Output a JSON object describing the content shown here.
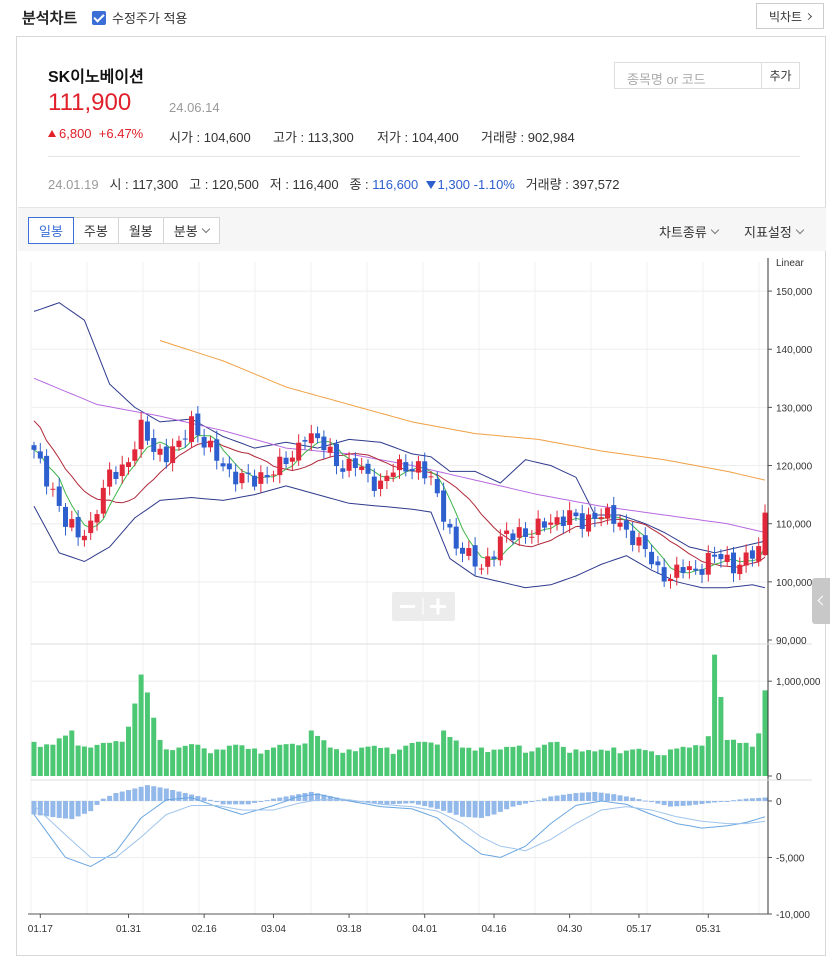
{
  "header": {
    "title": "분석차트",
    "adjusted_price_label": "수정주가 적용",
    "big_chart_label": "빅차트"
  },
  "stock": {
    "name": "SK이노베이션",
    "price": "111,900",
    "date": "24.06.14",
    "change_amount": "6,800",
    "change_pct": "+6.47%",
    "open": "시가 : 104,600",
    "high": "고가 : 113,300",
    "low": "저가 : 104,400",
    "volume": "거래량 : 902,984"
  },
  "search": {
    "placeholder": "종목명 or 코드",
    "add_label": "추가"
  },
  "compare": {
    "date": "24.01.19",
    "open": "시 : 117,300",
    "high": "고 : 120,500",
    "low": "저 : 116,400",
    "close_label": "종 : ",
    "close": "116,600",
    "change": "1,300",
    "change_pct": "-1.10%",
    "volume": "거래량 : 397,572"
  },
  "toolbar": {
    "tabs": [
      "일봉",
      "주봉",
      "월봉",
      "분봉"
    ],
    "active_tab": "일봉",
    "chart_type_label": "차트종류",
    "indicator_label": "지표설정"
  },
  "colors": {
    "up": "#e0283a",
    "down": "#2d5fce",
    "volume": "#4cc774",
    "macd_hist": "#93b8ea",
    "ma_short": "#3fb54a",
    "ma_mid": "#b0283a",
    "ma_long1": "#b86ae0",
    "ma_long2": "#f1a043",
    "bollinger": "#2e3a8c"
  },
  "chart_data": {
    "type": "candlestick",
    "scale_label": "Linear",
    "x_ticks": [
      "01.17",
      "01.31",
      "02.16",
      "03.04",
      "03.18",
      "04.01",
      "04.16",
      "04.30",
      "05.17",
      "05.31"
    ],
    "price_axis": {
      "ticks": [
        "150,000",
        "140,000",
        "130,000",
        "120,000",
        "110,000",
        "100,000",
        "90,000"
      ],
      "range": [
        90000,
        155000
      ]
    },
    "volume_axis": {
      "ticks": [
        "1,000,000",
        "0"
      ],
      "range": [
        0,
        1350000
      ]
    },
    "macd_axis": {
      "ticks": [
        "0",
        "-5,000",
        "-10,000"
      ],
      "range": [
        -10000,
        1500
      ]
    },
    "price_anchors": [
      [
        0,
        122
      ],
      [
        3,
        116
      ],
      [
        5,
        110
      ],
      [
        7,
        108
      ],
      [
        9,
        110
      ],
      [
        12,
        118
      ],
      [
        15,
        121
      ],
      [
        17,
        126
      ],
      [
        19,
        123
      ],
      [
        21,
        122
      ],
      [
        23,
        123
      ],
      [
        25,
        128
      ],
      [
        27,
        124
      ],
      [
        29,
        121
      ],
      [
        31,
        119
      ],
      [
        33,
        118
      ],
      [
        35,
        117
      ],
      [
        37,
        119
      ],
      [
        39,
        120
      ],
      [
        41,
        121
      ],
      [
        43,
        126
      ],
      [
        45,
        124
      ],
      [
        47,
        122
      ],
      [
        49,
        120
      ],
      [
        51,
        120
      ],
      [
        53,
        118
      ],
      [
        55,
        117
      ],
      [
        57,
        119
      ],
      [
        59,
        120
      ],
      [
        61,
        120
      ],
      [
        63,
        117
      ],
      [
        65,
        112
      ],
      [
        67,
        106
      ],
      [
        69,
        104
      ],
      [
        71,
        103
      ],
      [
        73,
        105
      ],
      [
        75,
        108
      ],
      [
        77,
        109
      ],
      [
        79,
        108
      ],
      [
        81,
        110
      ],
      [
        83,
        111
      ],
      [
        85,
        111
      ],
      [
        87,
        110
      ],
      [
        89,
        112
      ],
      [
        91,
        111
      ],
      [
        93,
        110
      ],
      [
        95,
        108
      ],
      [
        97,
        105
      ],
      [
        99,
        102
      ],
      [
        101,
        101
      ],
      [
        103,
        102
      ],
      [
        105,
        102
      ],
      [
        107,
        104
      ],
      [
        109,
        104
      ],
      [
        111,
        103
      ],
      [
        113,
        104
      ],
      [
        115,
        105
      ],
      [
        116,
        111.9
      ]
    ],
    "volume_anchors": [
      [
        0,
        360000
      ],
      [
        3,
        330000
      ],
      [
        6,
        480000
      ],
      [
        9,
        300000
      ],
      [
        12,
        350000
      ],
      [
        15,
        520000
      ],
      [
        17,
        1070000
      ],
      [
        20,
        380000
      ],
      [
        23,
        300000
      ],
      [
        26,
        330000
      ],
      [
        29,
        280000
      ],
      [
        32,
        330000
      ],
      [
        35,
        290000
      ],
      [
        38,
        300000
      ],
      [
        41,
        340000
      ],
      [
        44,
        480000
      ],
      [
        47,
        300000
      ],
      [
        50,
        280000
      ],
      [
        53,
        310000
      ],
      [
        56,
        300000
      ],
      [
        59,
        320000
      ],
      [
        62,
        360000
      ],
      [
        65,
        480000
      ],
      [
        68,
        300000
      ],
      [
        71,
        300000
      ],
      [
        74,
        280000
      ],
      [
        77,
        320000
      ],
      [
        80,
        300000
      ],
      [
        83,
        360000
      ],
      [
        86,
        280000
      ],
      [
        89,
        260000
      ],
      [
        92,
        300000
      ],
      [
        95,
        280000
      ],
      [
        98,
        260000
      ],
      [
        101,
        280000
      ],
      [
        104,
        300000
      ],
      [
        107,
        420000
      ],
      [
        108,
        1280000
      ],
      [
        110,
        380000
      ],
      [
        113,
        350000
      ],
      [
        115,
        450000
      ],
      [
        116,
        902984
      ]
    ],
    "macd_hist_anchors": [
      [
        0,
        -1200
      ],
      [
        4,
        -1500
      ],
      [
        6,
        -1600
      ],
      [
        9,
        -900
      ],
      [
        11,
        200
      ],
      [
        13,
        700
      ],
      [
        16,
        1100
      ],
      [
        18,
        1400
      ],
      [
        21,
        1100
      ],
      [
        24,
        700
      ],
      [
        27,
        300
      ],
      [
        30,
        -300
      ],
      [
        34,
        -300
      ],
      [
        38,
        200
      ],
      [
        41,
        500
      ],
      [
        44,
        800
      ],
      [
        48,
        300
      ],
      [
        52,
        -100
      ],
      [
        56,
        -300
      ],
      [
        60,
        -200
      ],
      [
        64,
        -700
      ],
      [
        68,
        -1400
      ],
      [
        71,
        -1500
      ],
      [
        73,
        -1200
      ],
      [
        76,
        -500
      ],
      [
        79,
        -100
      ],
      [
        82,
        400
      ],
      [
        86,
        700
      ],
      [
        89,
        800
      ],
      [
        92,
        600
      ],
      [
        95,
        300
      ],
      [
        98,
        -100
      ],
      [
        101,
        -500
      ],
      [
        104,
        -400
      ],
      [
        107,
        -200
      ],
      [
        110,
        0
      ],
      [
        113,
        200
      ],
      [
        116,
        300
      ]
    ],
    "macd_anchors": [
      [
        0,
        -1200
      ],
      [
        5,
        -5000
      ],
      [
        9,
        -5800
      ],
      [
        13,
        -4500
      ],
      [
        17,
        -1500
      ],
      [
        21,
        100
      ],
      [
        25,
        300
      ],
      [
        29,
        -500
      ],
      [
        33,
        -1200
      ],
      [
        38,
        -400
      ],
      [
        42,
        400
      ],
      [
        45,
        600
      ],
      [
        50,
        0
      ],
      [
        55,
        -500
      ],
      [
        60,
        -700
      ],
      [
        64,
        -1500
      ],
      [
        68,
        -3500
      ],
      [
        71,
        -4700
      ],
      [
        74,
        -5000
      ],
      [
        78,
        -4000
      ],
      [
        82,
        -2000
      ],
      [
        86,
        -400
      ],
      [
        90,
        0
      ],
      [
        94,
        -300
      ],
      [
        98,
        -1200
      ],
      [
        102,
        -2000
      ],
      [
        106,
        -2400
      ],
      [
        110,
        -2200
      ],
      [
        113,
        -1900
      ],
      [
        116,
        -1400
      ]
    ],
    "signal_anchors": [
      [
        0,
        -400
      ],
      [
        5,
        -3000
      ],
      [
        9,
        -5000
      ],
      [
        13,
        -5000
      ],
      [
        17,
        -3200
      ],
      [
        21,
        -1200
      ],
      [
        25,
        -400
      ],
      [
        29,
        -400
      ],
      [
        33,
        -800
      ],
      [
        38,
        -800
      ],
      [
        42,
        -200
      ],
      [
        45,
        100
      ],
      [
        50,
        100
      ],
      [
        55,
        -300
      ],
      [
        60,
        -500
      ],
      [
        64,
        -900
      ],
      [
        68,
        -2000
      ],
      [
        71,
        -3200
      ],
      [
        74,
        -4000
      ],
      [
        78,
        -4400
      ],
      [
        82,
        -3400
      ],
      [
        86,
        -2000
      ],
      [
        90,
        -800
      ],
      [
        94,
        -500
      ],
      [
        98,
        -800
      ],
      [
        102,
        -1400
      ],
      [
        106,
        -1800
      ],
      [
        110,
        -2000
      ],
      [
        113,
        -2000
      ],
      [
        116,
        -1800
      ]
    ],
    "ma_long2_anchors": [
      [
        20,
        141.5
      ],
      [
        30,
        138
      ],
      [
        40,
        133.5
      ],
      [
        50,
        130.5
      ],
      [
        60,
        127.5
      ],
      [
        70,
        125.5
      ],
      [
        80,
        124.5
      ],
      [
        90,
        122.5
      ],
      [
        100,
        121
      ],
      [
        110,
        119
      ],
      [
        116,
        117.5
      ]
    ],
    "ma_long1_anchors": [
      [
        0,
        135
      ],
      [
        10,
        130.5
      ],
      [
        20,
        128.5
      ],
      [
        30,
        126
      ],
      [
        40,
        123
      ],
      [
        50,
        122
      ],
      [
        60,
        120
      ],
      [
        70,
        117.5
      ],
      [
        80,
        115
      ],
      [
        90,
        113
      ],
      [
        100,
        111.5
      ],
      [
        110,
        110
      ],
      [
        116,
        108.5
      ]
    ],
    "bb_upper_anchors": [
      [
        0,
        146.5
      ],
      [
        4,
        148
      ],
      [
        8,
        145
      ],
      [
        12,
        134
      ],
      [
        16,
        130
      ],
      [
        20,
        127.5
      ],
      [
        25,
        128
      ],
      [
        30,
        125
      ],
      [
        35,
        123
      ],
      [
        40,
        124
      ],
      [
        45,
        123
      ],
      [
        50,
        124.5
      ],
      [
        55,
        124
      ],
      [
        60,
        122
      ],
      [
        63,
        121.5
      ],
      [
        66,
        119
      ],
      [
        70,
        119
      ],
      [
        74,
        117
      ],
      [
        78,
        121
      ],
      [
        82,
        120
      ],
      [
        86,
        118
      ],
      [
        89,
        111.5
      ],
      [
        93,
        111.5
      ],
      [
        97,
        110
      ],
      [
        100,
        108.5
      ],
      [
        104,
        106
      ],
      [
        108,
        105
      ],
      [
        112,
        106
      ],
      [
        116,
        107
      ]
    ],
    "bb_lower_anchors": [
      [
        0,
        113
      ],
      [
        4,
        105
      ],
      [
        8,
        103.5
      ],
      [
        12,
        106
      ],
      [
        16,
        111
      ],
      [
        20,
        114
      ],
      [
        25,
        114.5
      ],
      [
        30,
        114
      ],
      [
        35,
        115
      ],
      [
        40,
        116.5
      ],
      [
        45,
        115
      ],
      [
        50,
        113.5
      ],
      [
        55,
        113
      ],
      [
        60,
        112.5
      ],
      [
        63,
        112
      ],
      [
        66,
        104
      ],
      [
        70,
        101
      ],
      [
        74,
        100
      ],
      [
        78,
        99
      ],
      [
        82,
        99.5
      ],
      [
        86,
        101
      ],
      [
        90,
        103
      ],
      [
        94,
        104.5
      ],
      [
        98,
        102
      ],
      [
        102,
        100
      ],
      [
        106,
        99
      ],
      [
        110,
        99
      ],
      [
        114,
        99.5
      ],
      [
        116,
        99
      ]
    ]
  }
}
